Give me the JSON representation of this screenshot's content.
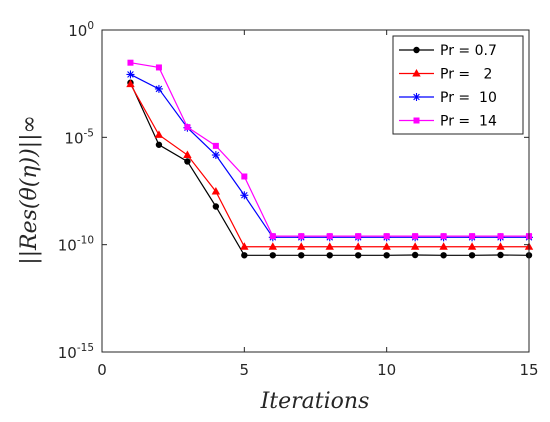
{
  "chart_data": {
    "type": "line",
    "xlabel": "Iterations",
    "ylabel": "||Res(θ(η))||∞",
    "y_scale": "log",
    "xlim": [
      0,
      15
    ],
    "ylim": [
      1e-15,
      1
    ],
    "x_ticks": [
      0,
      5,
      10,
      15
    ],
    "y_ticks": [
      {
        "value": 1.0,
        "base": "10",
        "exp": "0"
      },
      {
        "value": 1e-05,
        "base": "10",
        "exp": "-5"
      },
      {
        "value": 1e-10,
        "base": "10",
        "exp": "-10"
      },
      {
        "value": 1e-15,
        "base": "10",
        "exp": "-15"
      }
    ],
    "grid": false,
    "legend_position": "top-right",
    "x": [
      1,
      2,
      3,
      4,
      5,
      6,
      7,
      8,
      9,
      10,
      11,
      12,
      13,
      14,
      15
    ],
    "series": [
      {
        "name": "Pr = 0.7",
        "color": "#000000",
        "marker": "circle",
        "values": [
          0.0035,
          4.5e-06,
          7.5e-07,
          6e-09,
          3.2e-11,
          3.2e-11,
          3.2e-11,
          3.2e-11,
          3.2e-11,
          3.2e-11,
          3.3e-11,
          3.2e-11,
          3.2e-11,
          3.3e-11,
          3.2e-11
        ]
      },
      {
        "name": "Pr =   2",
        "color": "#ff0000",
        "marker": "triangle",
        "values": [
          0.003,
          1.3e-05,
          1.5e-06,
          3e-08,
          8e-11,
          8e-11,
          8e-11,
          8e-11,
          8e-11,
          8e-11,
          8e-11,
          8e-11,
          8e-11,
          8e-11,
          8e-11
        ]
      },
      {
        "name": "Pr =  10",
        "color": "#0000ff",
        "marker": "star",
        "values": [
          0.0085,
          0.0018,
          2.8e-05,
          1.5e-06,
          2e-08,
          2.2e-10,
          2.2e-10,
          2.2e-10,
          2.2e-10,
          2.2e-10,
          2.2e-10,
          2.2e-10,
          2.2e-10,
          2.2e-10,
          2.2e-10
        ]
      },
      {
        "name": "Pr =  14",
        "color": "#ff00ff",
        "marker": "square",
        "values": [
          0.03,
          0.018,
          3e-05,
          4e-06,
          1.5e-07,
          2.5e-10,
          2.5e-10,
          2.5e-10,
          2.5e-10,
          2.5e-10,
          2.5e-10,
          2.5e-10,
          2.5e-10,
          2.5e-10,
          2.5e-10
        ]
      }
    ]
  }
}
